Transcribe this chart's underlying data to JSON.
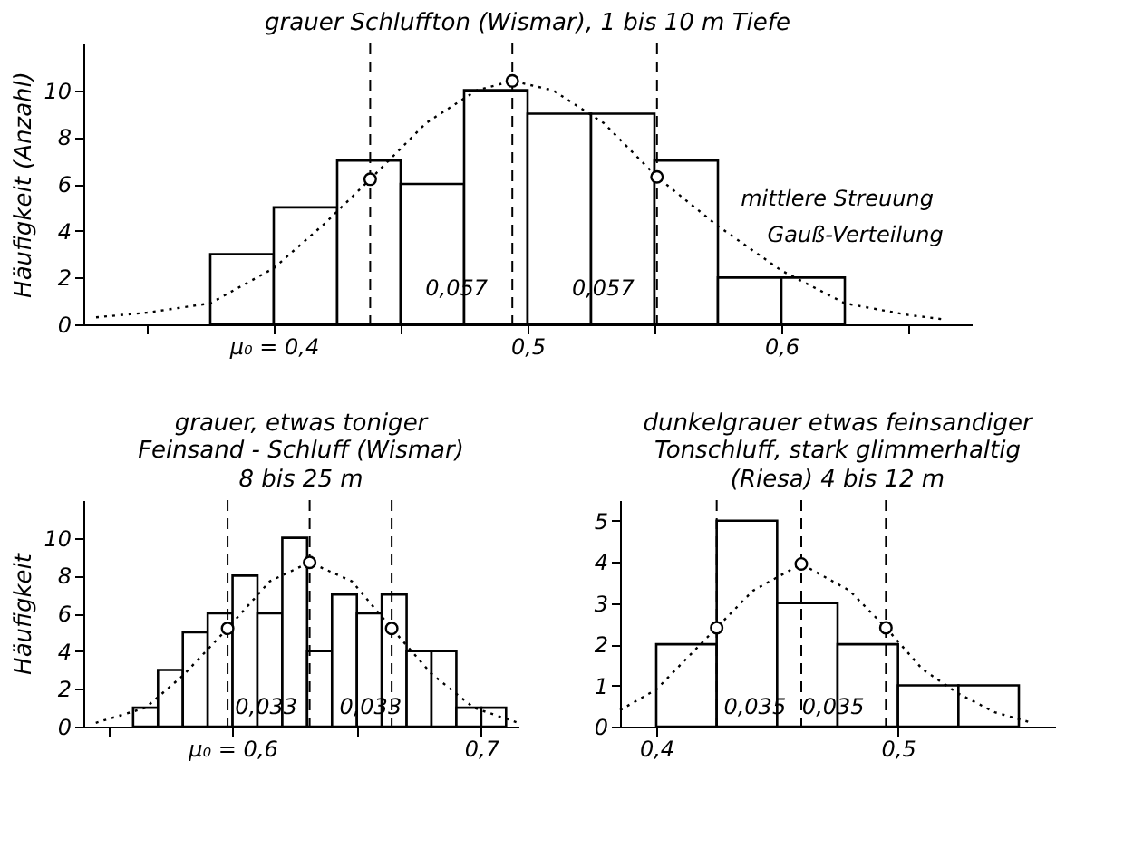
{
  "chart_data": [
    {
      "type": "histogram",
      "title": "grauer Schluffton (Wismar), 1 bis 10 m Tiefe",
      "ylabel": "Häufigkeit (Anzahl)",
      "xlim": [
        0.325,
        0.675
      ],
      "ylim": [
        0,
        12
      ],
      "xticks": [
        {
          "value": 0.35,
          "label": null
        },
        {
          "value": 0.4,
          "label": "μ₀ = 0,4"
        },
        {
          "value": 0.45,
          "label": null
        },
        {
          "value": 0.5,
          "label": "0,5"
        },
        {
          "value": 0.55,
          "label": null
        },
        {
          "value": 0.6,
          "label": "0,6"
        },
        {
          "value": 0.65,
          "label": null
        }
      ],
      "yticks": [
        0,
        2,
        4,
        6,
        8,
        10
      ],
      "grid": false,
      "series": [
        {
          "color": "#ffffff",
          "bins": [
            0.375,
            0.4,
            0.425,
            0.45,
            0.475,
            0.5,
            0.525,
            0.55,
            0.575,
            0.6,
            0.625
          ],
          "values": [
            3,
            5,
            7,
            6,
            10,
            9,
            9,
            7,
            2,
            2
          ]
        },
        {
          "type": "line",
          "color": "#000000",
          "line_style": "dotted",
          "x": [
            0.33,
            0.35,
            0.375,
            0.4,
            0.42,
            0.438,
            0.46,
            0.48,
            0.494,
            0.51,
            0.53,
            0.551,
            0.575,
            0.6,
            0.625,
            0.65,
            0.665
          ],
          "values": [
            0.3,
            0.5,
            0.9,
            2.4,
            4.3,
            6.2,
            8.6,
            10.0,
            10.4,
            10.0,
            8.6,
            6.3,
            4.2,
            2.3,
            0.9,
            0.4,
            0.2
          ]
        },
        {
          "type": "scatter",
          "color": "#000000",
          "marker": "circle",
          "x": [
            0.438,
            0.494,
            0.551
          ],
          "values": [
            6.2,
            10.4,
            6.3
          ]
        }
      ],
      "ref_lines": [
        {
          "axis": "x",
          "value": 0.438,
          "line_style": "dashed"
        },
        {
          "axis": "x",
          "value": 0.494,
          "line_style": "dashed"
        },
        {
          "axis": "x",
          "value": 0.551,
          "line_style": "dashed"
        }
      ],
      "annotations": [
        "0,057",
        "0,057",
        "mittlere Streuung",
        "Gauß-Verteilung"
      ]
    },
    {
      "type": "histogram",
      "title": "grauer, etwas toniger\nFeinsand - Schluff (Wismar)",
      "subtitle": "8 bis 25 m",
      "ylabel": "Häufigkeit",
      "xlim": [
        0.54,
        0.715
      ],
      "ylim": [
        0,
        12
      ],
      "xticks": [
        {
          "value": 0.55,
          "label": null
        },
        {
          "value": 0.6,
          "label": "μ₀ = 0,6"
        },
        {
          "value": 0.65,
          "label": null
        },
        {
          "value": 0.7,
          "label": "0,7"
        }
      ],
      "yticks": [
        0,
        2,
        4,
        6,
        8,
        10
      ],
      "grid": false,
      "series": [
        {
          "color": "#ffffff",
          "bins": [
            0.56,
            0.57,
            0.58,
            0.59,
            0.6,
            0.61,
            0.62,
            0.63,
            0.64,
            0.65,
            0.66,
            0.67,
            0.68,
            0.69,
            0.7,
            0.71
          ],
          "values": [
            1,
            3,
            5,
            6,
            8,
            6,
            10,
            4,
            7,
            6,
            7,
            4,
            4,
            1,
            1
          ]
        },
        {
          "type": "line",
          "color": "#000000",
          "line_style": "dotted",
          "x": [
            0.545,
            0.565,
            0.58,
            0.598,
            0.615,
            0.631,
            0.648,
            0.664,
            0.68,
            0.697,
            0.715
          ],
          "values": [
            0.2,
            1.0,
            2.7,
            5.2,
            7.7,
            8.7,
            7.7,
            5.2,
            2.8,
            1.0,
            0.2
          ]
        },
        {
          "type": "scatter",
          "color": "#000000",
          "marker": "circle",
          "x": [
            0.598,
            0.631,
            0.664
          ],
          "values": [
            5.2,
            8.7,
            5.2
          ]
        }
      ],
      "ref_lines": [
        {
          "axis": "x",
          "value": 0.598,
          "line_style": "dashed"
        },
        {
          "axis": "x",
          "value": 0.631,
          "line_style": "dashed"
        },
        {
          "axis": "x",
          "value": 0.664,
          "line_style": "dashed"
        }
      ],
      "annotations": [
        "0,033",
        "0,033"
      ]
    },
    {
      "type": "histogram",
      "title": "dunkelgrauer etwas feinsandiger\nTonschluff, stark glimmerhaltig",
      "subtitle": "(Riesa) 4 bis 12 m",
      "xlim": [
        0.385,
        0.565
      ],
      "ylim": [
        0,
        5.5
      ],
      "xticks": [
        {
          "value": 0.4,
          "label": "0,4"
        },
        {
          "value": 0.5,
          "label": "0,5"
        }
      ],
      "yticks": [
        0,
        1,
        2,
        3,
        4,
        5
      ],
      "grid": false,
      "series": [
        {
          "color": "#ffffff",
          "bins": [
            0.4,
            0.425,
            0.45,
            0.475,
            0.5,
            0.525,
            0.55
          ],
          "values": [
            2,
            5,
            3,
            2,
            1,
            1
          ]
        },
        {
          "type": "line",
          "color": "#000000",
          "line_style": "dotted",
          "x": [
            0.385,
            0.4,
            0.41,
            0.425,
            0.44,
            0.46,
            0.48,
            0.495,
            0.51,
            0.525,
            0.54,
            0.555
          ],
          "values": [
            0.4,
            0.9,
            1.5,
            2.4,
            3.3,
            3.95,
            3.3,
            2.4,
            1.4,
            0.8,
            0.35,
            0.1
          ]
        },
        {
          "type": "scatter",
          "color": "#000000",
          "marker": "circle",
          "x": [
            0.425,
            0.46,
            0.495
          ],
          "values": [
            2.4,
            3.95,
            2.4
          ]
        }
      ],
      "ref_lines": [
        {
          "axis": "x",
          "value": 0.425,
          "line_style": "dashed"
        },
        {
          "axis": "x",
          "value": 0.46,
          "line_style": "dashed"
        },
        {
          "axis": "x",
          "value": 0.495,
          "line_style": "dashed"
        }
      ],
      "annotations": [
        "0,035",
        "0,035"
      ]
    }
  ]
}
